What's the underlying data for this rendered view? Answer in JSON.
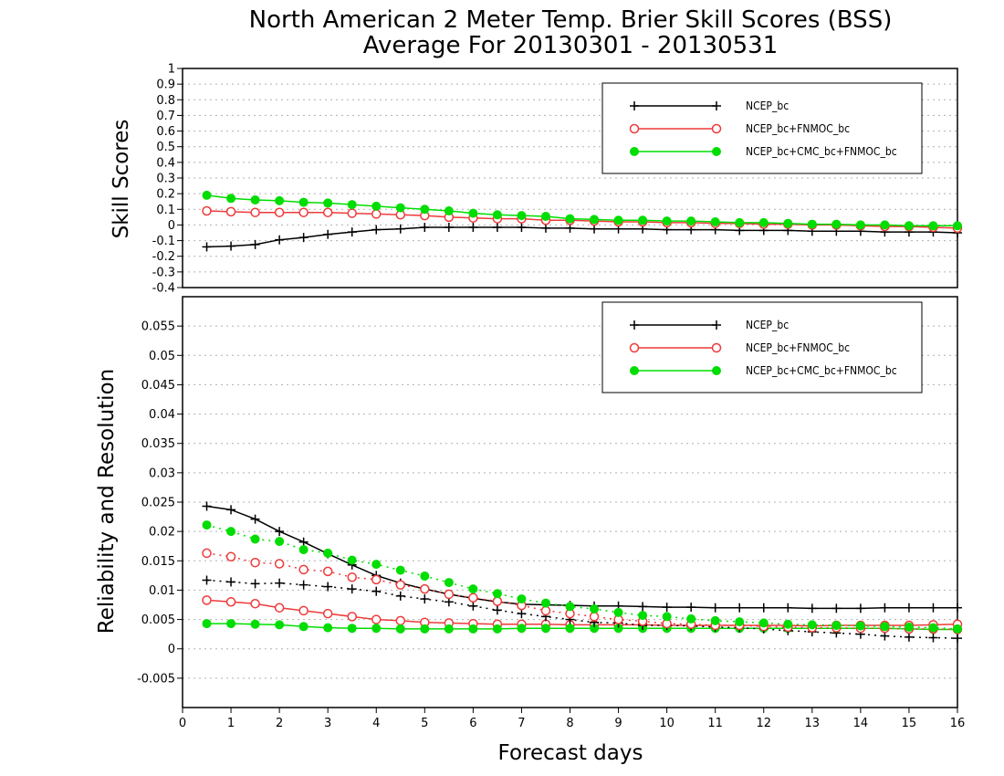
{
  "title": {
    "line1": "North American 2 Meter Temp. Brier Skill Scores (BSS)",
    "line2": "Average For 20130301 - 20130531"
  },
  "colors": {
    "ncep_bc": "#000000",
    "ncep_bc_fnmoc_bc": "#ee3a3a",
    "ncep_bc_cmc_bc_fnmoc_bc": "#00dd00"
  },
  "chart_data": [
    {
      "type": "line",
      "panel": "top",
      "ylabel": "Skill Scores",
      "xlabel": "",
      "xlim": [
        0,
        16
      ],
      "ylim": [
        -0.4,
        1
      ],
      "yticks": [
        "-0.4",
        "-0.3",
        "-0.2",
        "-0.1",
        "0",
        "0.1",
        "0.2",
        "0.3",
        "0.4",
        "0.5",
        "0.6",
        "0.7",
        "0.8",
        "0.9",
        "1"
      ],
      "grid": true,
      "legend_position": "top-right",
      "legend": [
        "NCEP_bc",
        "NCEP_bc+FNMOC_bc",
        "NCEP_bc+CMC_bc+FNMOC_bc"
      ],
      "x": [
        0.5,
        1,
        1.5,
        2,
        2.5,
        3,
        3.5,
        4,
        4.5,
        5,
        5.5,
        6,
        6.5,
        7,
        7.5,
        8,
        8.5,
        9,
        9.5,
        10,
        10.5,
        11,
        11.5,
        12,
        12.5,
        13,
        13.5,
        14,
        14.5,
        15,
        15.5,
        16
      ],
      "series": [
        {
          "name": "NCEP_bc",
          "style": "solid",
          "marker": "plus",
          "values": [
            -0.14,
            -0.135,
            -0.125,
            -0.095,
            -0.08,
            -0.06,
            -0.045,
            -0.03,
            -0.025,
            -0.015,
            -0.015,
            -0.015,
            -0.015,
            -0.015,
            -0.02,
            -0.02,
            -0.025,
            -0.025,
            -0.025,
            -0.03,
            -0.03,
            -0.03,
            -0.035,
            -0.035,
            -0.035,
            -0.04,
            -0.04,
            -0.04,
            -0.045,
            -0.045,
            -0.045,
            -0.05
          ]
        },
        {
          "name": "NCEP_bc+FNMOC_bc",
          "style": "solid",
          "marker": "open-circle",
          "values": [
            0.09,
            0.085,
            0.08,
            0.08,
            0.08,
            0.08,
            0.075,
            0.07,
            0.065,
            0.06,
            0.05,
            0.045,
            0.04,
            0.04,
            0.03,
            0.03,
            0.025,
            0.02,
            0.02,
            0.015,
            0.015,
            0.01,
            0.01,
            0.005,
            0.005,
            0,
            0,
            -0.005,
            -0.01,
            -0.01,
            -0.015,
            -0.02
          ]
        },
        {
          "name": "NCEP_bc+CMC_bc+FNMOC_bc",
          "style": "solid",
          "marker": "filled-circle",
          "values": [
            0.19,
            0.17,
            0.16,
            0.155,
            0.145,
            0.14,
            0.13,
            0.12,
            0.11,
            0.1,
            0.09,
            0.075,
            0.065,
            0.06,
            0.055,
            0.04,
            0.035,
            0.03,
            0.03,
            0.025,
            0.025,
            0.02,
            0.015,
            0.015,
            0.01,
            0.005,
            0.005,
            0,
            0,
            -0.005,
            -0.005,
            -0.005
          ]
        }
      ]
    },
    {
      "type": "line",
      "panel": "bottom",
      "ylabel": "Reliability and Resolution",
      "xlabel": "Forecast days",
      "xlim": [
        0,
        16
      ],
      "ylim": [
        -0.01,
        0.06
      ],
      "yticks": [
        "-0.005",
        "0",
        "0.005",
        "0.01",
        "0.015",
        "0.02",
        "0.025",
        "0.03",
        "0.035",
        "0.04",
        "0.045",
        "0.05",
        "0.055"
      ],
      "xticks": [
        "0",
        "1",
        "2",
        "3",
        "4",
        "5",
        "6",
        "7",
        "8",
        "9",
        "10",
        "11",
        "12",
        "13",
        "14",
        "15",
        "16"
      ],
      "grid": true,
      "legend_position": "top-right",
      "legend": [
        "NCEP_bc",
        "NCEP_bc+FNMOC_bc",
        "NCEP_bc+CMC_bc+FNMOC_bc"
      ],
      "x": [
        0.5,
        1,
        1.5,
        2,
        2.5,
        3,
        3.5,
        4,
        4.5,
        5,
        5.5,
        6,
        6.5,
        7,
        7.5,
        8,
        8.5,
        9,
        9.5,
        10,
        10.5,
        11,
        11.5,
        12,
        12.5,
        13,
        13.5,
        14,
        14.5,
        15,
        15.5,
        16
      ],
      "series": [
        {
          "name": "NCEP_bc",
          "role": "reliability",
          "style": "solid",
          "marker": "plus",
          "values": [
            0.0243,
            0.0237,
            0.0221,
            0.02,
            0.0182,
            0.0162,
            0.0143,
            0.0125,
            0.0112,
            0.0102,
            0.0093,
            0.0086,
            0.008,
            0.0076,
            0.0075,
            0.0074,
            0.0073,
            0.0073,
            0.0072,
            0.0071,
            0.0071,
            0.007,
            0.007,
            0.007,
            0.007,
            0.0069,
            0.0069,
            0.0069,
            0.007,
            0.007,
            0.007,
            0.007
          ]
        },
        {
          "name": "NCEP_bc+FNMOC_bc",
          "role": "reliability",
          "style": "solid",
          "marker": "open-circle",
          "values": [
            0.0083,
            0.008,
            0.0077,
            0.007,
            0.0065,
            0.006,
            0.0055,
            0.005,
            0.0048,
            0.0045,
            0.0044,
            0.0043,
            0.0042,
            0.0042,
            0.0042,
            0.0041,
            0.0041,
            0.0041,
            0.0041,
            0.004,
            0.004,
            0.004,
            0.004,
            0.004,
            0.004,
            0.0039,
            0.004,
            0.004,
            0.004,
            0.004,
            0.0041,
            0.0042
          ]
        },
        {
          "name": "NCEP_bc+CMC_bc+FNMOC_bc",
          "role": "reliability",
          "style": "solid",
          "marker": "filled-circle",
          "values": [
            0.0043,
            0.0043,
            0.0042,
            0.0041,
            0.0038,
            0.0036,
            0.0035,
            0.0035,
            0.0034,
            0.0034,
            0.0034,
            0.0034,
            0.0034,
            0.0035,
            0.0035,
            0.0035,
            0.0035,
            0.0035,
            0.0035,
            0.0035,
            0.0035,
            0.0035,
            0.0035,
            0.0035,
            0.0035,
            0.0035,
            0.0035,
            0.0035,
            0.0035,
            0.0034,
            0.0033,
            0.0033
          ]
        },
        {
          "name": "NCEP_bc",
          "role": "resolution",
          "style": "dotted",
          "marker": "plus",
          "values": [
            0.0117,
            0.0114,
            0.0111,
            0.0112,
            0.0109,
            0.0106,
            0.0102,
            0.0098,
            0.009,
            0.0085,
            0.008,
            0.0073,
            0.0066,
            0.006,
            0.0055,
            0.005,
            0.0045,
            0.0044,
            0.004,
            0.004,
            0.0039,
            0.0037,
            0.0036,
            0.0034,
            0.0031,
            0.0029,
            0.0027,
            0.0025,
            0.0022,
            0.002,
            0.0019,
            0.0018
          ]
        },
        {
          "name": "NCEP_bc+FNMOC_bc",
          "role": "resolution",
          "style": "dotted",
          "marker": "open-circle",
          "values": [
            0.0163,
            0.0157,
            0.0147,
            0.0145,
            0.0135,
            0.0132,
            0.0122,
            0.0118,
            0.0109,
            0.0102,
            0.0093,
            0.0087,
            0.0081,
            0.0074,
            0.0065,
            0.006,
            0.0055,
            0.005,
            0.0047,
            0.0043,
            0.0042,
            0.004,
            0.004,
            0.0038,
            0.0037,
            0.0036,
            0.0036,
            0.0035,
            0.0035,
            0.0034,
            0.0034,
            0.0033
          ]
        },
        {
          "name": "NCEP_bc+CMC_bc+FNMOC_bc",
          "role": "resolution",
          "style": "dotted",
          "marker": "filled-circle",
          "values": [
            0.0211,
            0.02,
            0.0187,
            0.0183,
            0.0169,
            0.0163,
            0.0151,
            0.0144,
            0.0134,
            0.0124,
            0.0113,
            0.0102,
            0.0094,
            0.0085,
            0.0078,
            0.0072,
            0.0068,
            0.0062,
            0.0057,
            0.0055,
            0.0051,
            0.0048,
            0.0046,
            0.0044,
            0.0042,
            0.0041,
            0.004,
            0.0039,
            0.0038,
            0.0037,
            0.0036,
            0.0034
          ]
        }
      ]
    }
  ]
}
